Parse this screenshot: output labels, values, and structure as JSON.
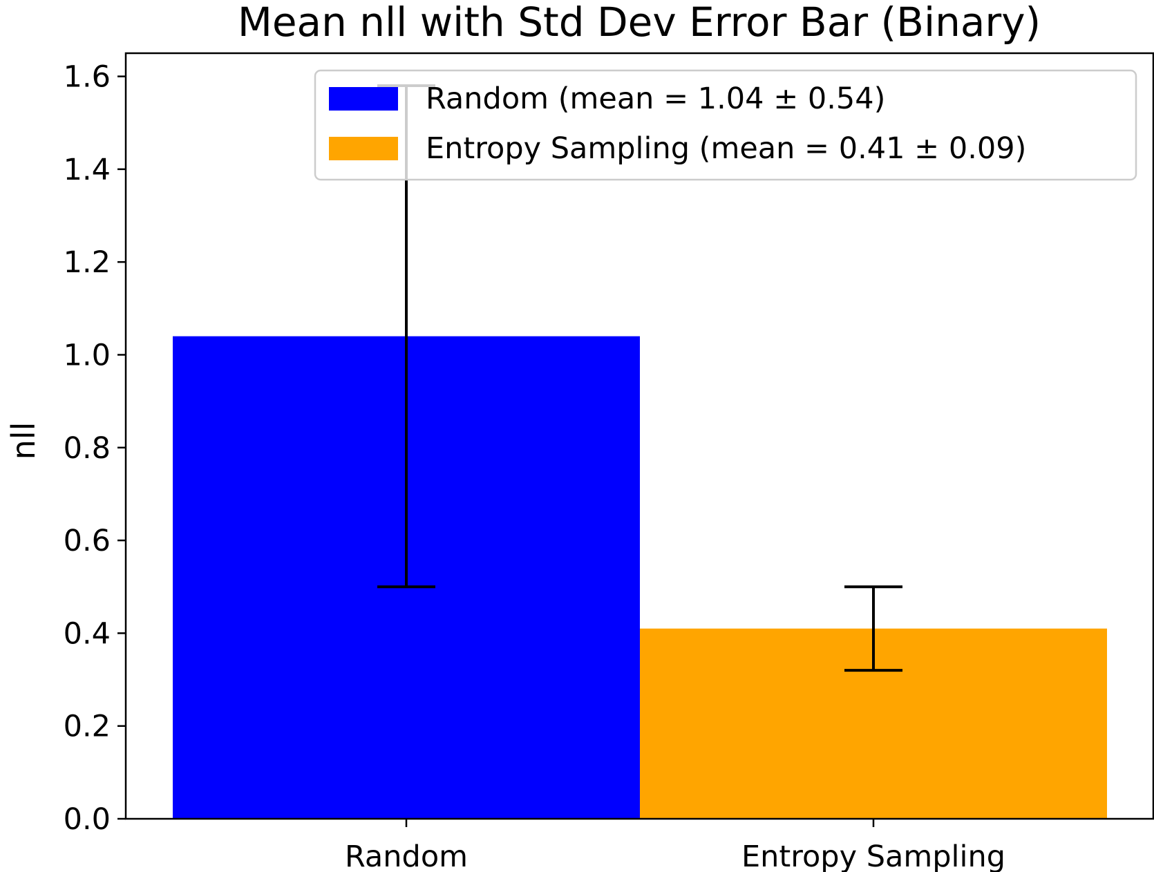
{
  "chart_data": {
    "type": "bar",
    "title": "Mean nll with Std Dev Error Bar (Binary)",
    "xlabel": "",
    "ylabel": "nll",
    "categories": [
      "Random",
      "Entropy Sampling"
    ],
    "values": [
      1.04,
      0.41
    ],
    "errors": [
      0.54,
      0.09
    ],
    "colors": [
      "#0000ff",
      "#ffa500"
    ],
    "ylim": [
      0,
      1.65
    ],
    "yticks": [
      "0.0",
      "0.2",
      "0.4",
      "0.6",
      "0.8",
      "1.0",
      "1.2",
      "1.4",
      "1.6"
    ],
    "legend": {
      "position": "top-right",
      "entries": [
        "Random (mean = 1.04 ± 0.54)",
        "Entropy Sampling (mean = 0.41 ± 0.09)"
      ]
    },
    "grid": false
  }
}
